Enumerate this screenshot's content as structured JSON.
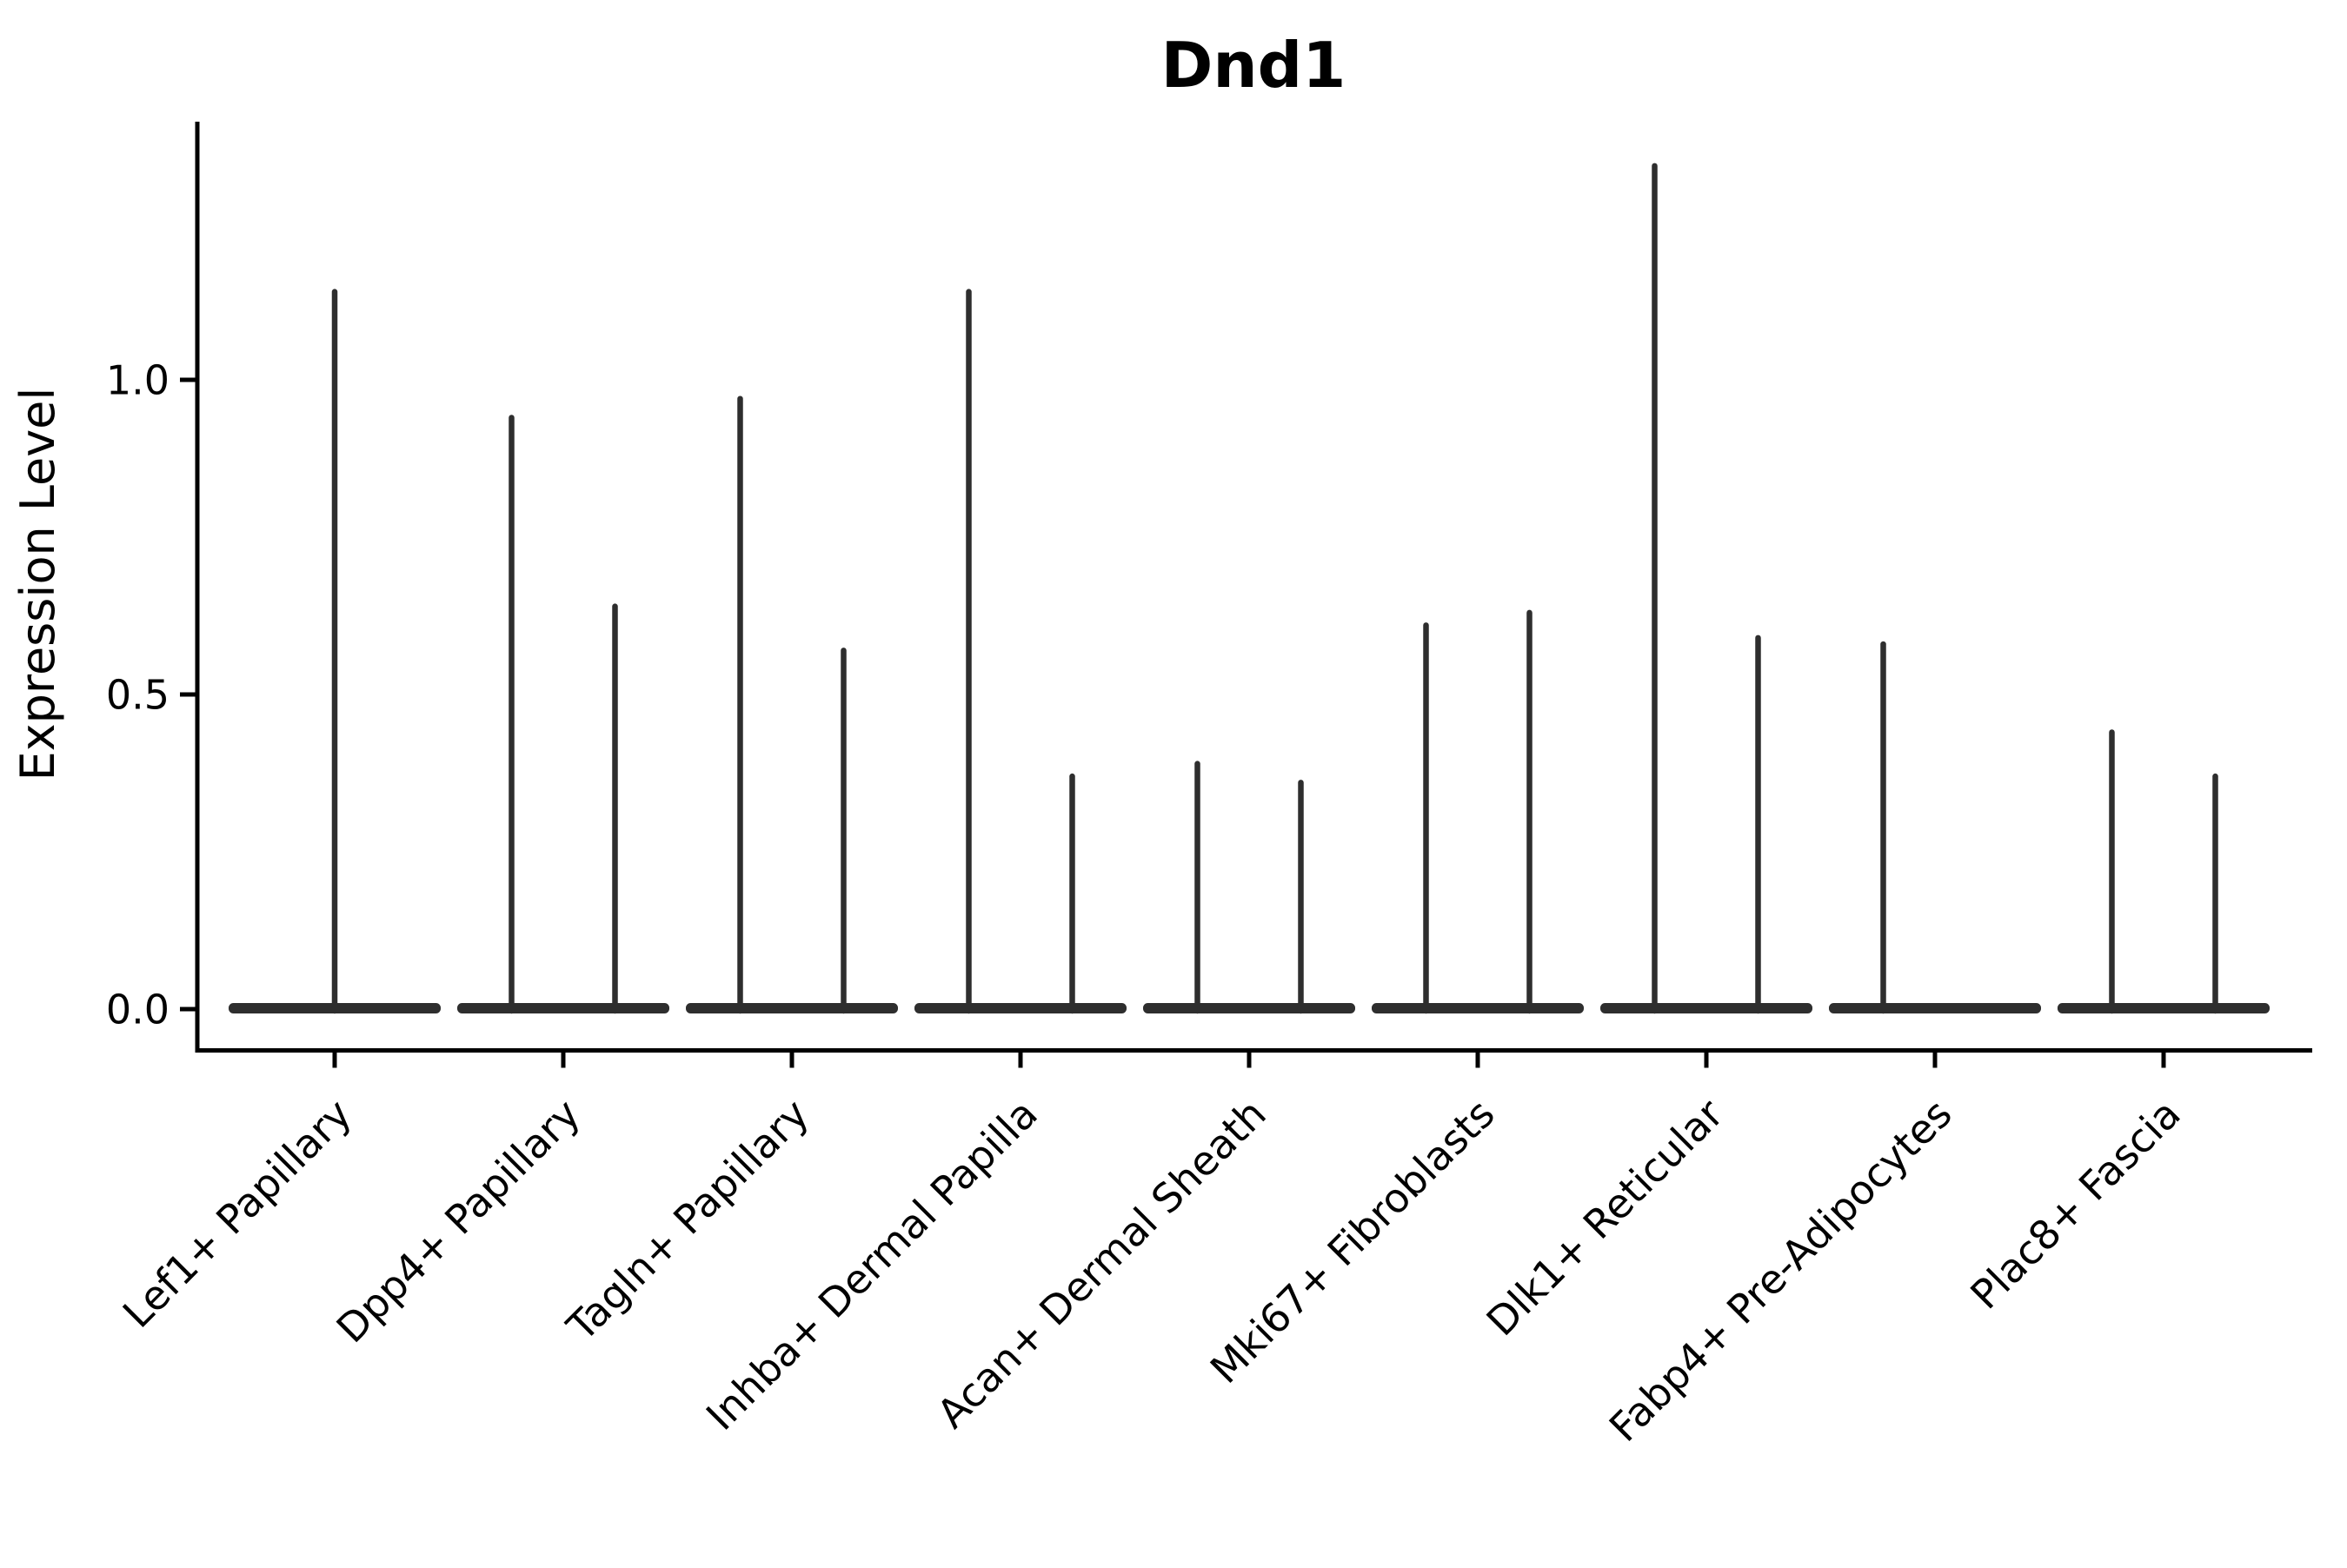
{
  "chart_data": {
    "type": "violin",
    "title": "Dnd1",
    "ylabel": "Expression Level",
    "xlabel": "",
    "ytick_labels": [
      "0.0",
      "0.5",
      "1.0"
    ],
    "ytick_values": [
      0.0,
      0.5,
      1.0
    ],
    "ylim": [
      -0.07,
      1.41
    ],
    "grid": false,
    "legend": null,
    "background": "#ffffff",
    "axis_color": "#000000",
    "violin_color": "#2e2e2e",
    "categories": [
      {
        "label": "Lef1+ Papillary",
        "violin_maxima": [
          1.14
        ]
      },
      {
        "label": "Dpp4+ Papillary",
        "violin_maxima": [
          0.94,
          0.64
        ]
      },
      {
        "label": "Tagln+ Papillary",
        "violin_maxima": [
          0.97,
          0.57
        ]
      },
      {
        "label": "Inhba+ Dermal Papilla",
        "violin_maxima": [
          1.14,
          0.37
        ]
      },
      {
        "label": "Acan+ Dermal Sheath",
        "violin_maxima": [
          0.39,
          0.36
        ]
      },
      {
        "label": "Mki67+ Fibroblasts",
        "violin_maxima": [
          0.61,
          0.63
        ]
      },
      {
        "label": "Dlk1+ Reticular",
        "violin_maxima": [
          1.34,
          0.59
        ]
      },
      {
        "label": "Fabp4+ Pre-Adipocytes",
        "violin_maxima": [
          0.58,
          null
        ]
      },
      {
        "label": "Plac8+ Fascia",
        "violin_maxima": [
          0.44,
          0.37
        ]
      }
    ]
  }
}
